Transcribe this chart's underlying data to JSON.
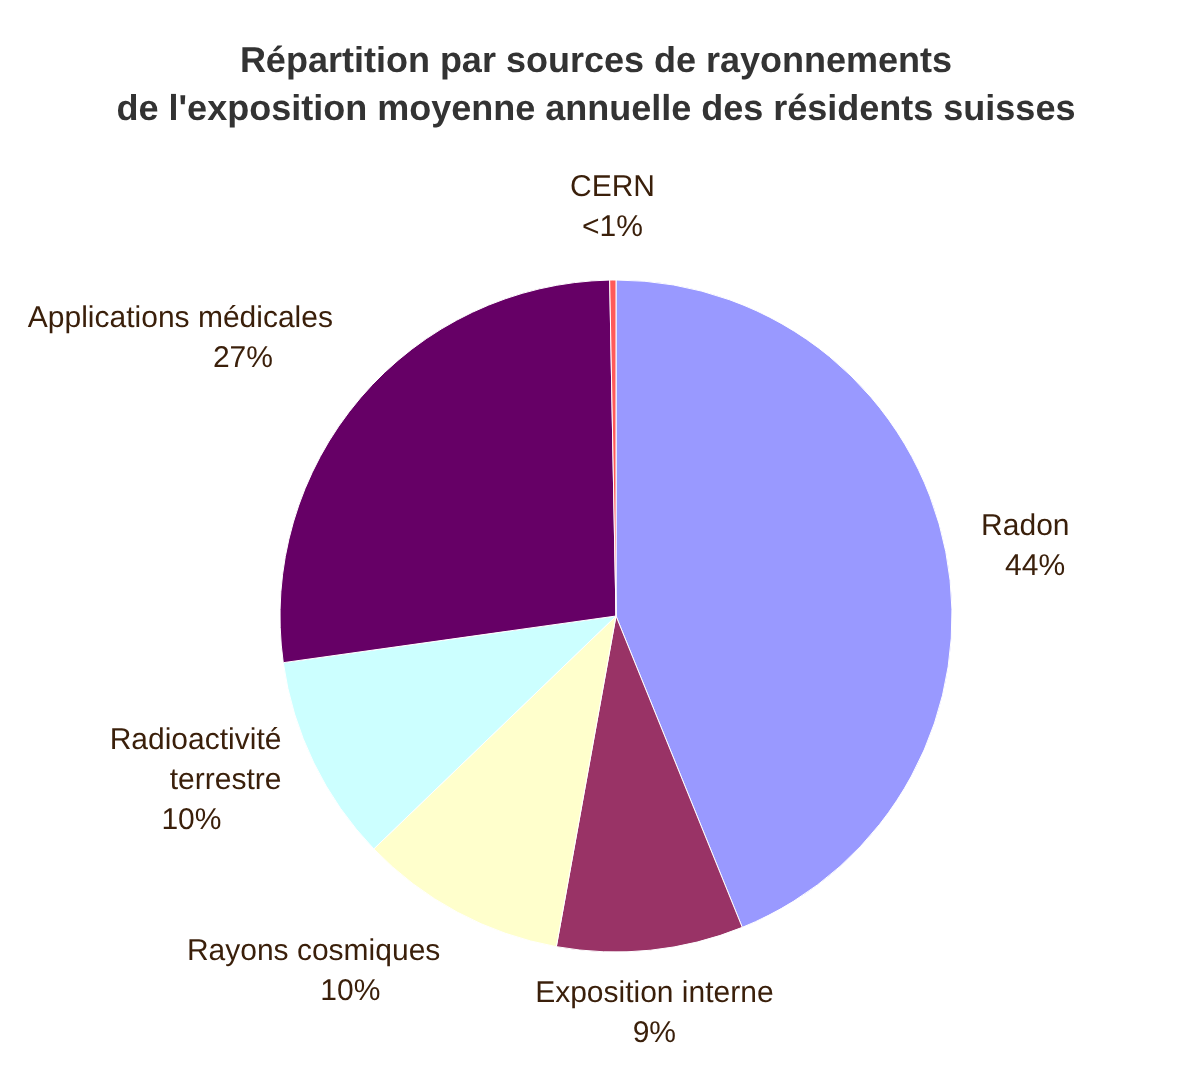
{
  "chart_data": {
    "type": "pie",
    "title": "Répartition par sources de rayonnements\nde l'exposition moyenne annuelle des résidents suisses",
    "categories": [
      "Radon",
      "Exposition interne",
      "Rayons cosmiques",
      "Radioactivité\nterrestre",
      "Applications médicales",
      "CERN"
    ],
    "values": [
      44,
      9,
      10,
      10,
      27,
      0.3
    ],
    "value_labels": [
      "44%",
      "9%",
      "10%",
      "10%",
      "27%",
      "<1%"
    ],
    "colors": [
      "#9999ff",
      "#993366",
      "#ffffcc",
      "#ccffff",
      "#660066",
      "#ff5a5a"
    ]
  }
}
